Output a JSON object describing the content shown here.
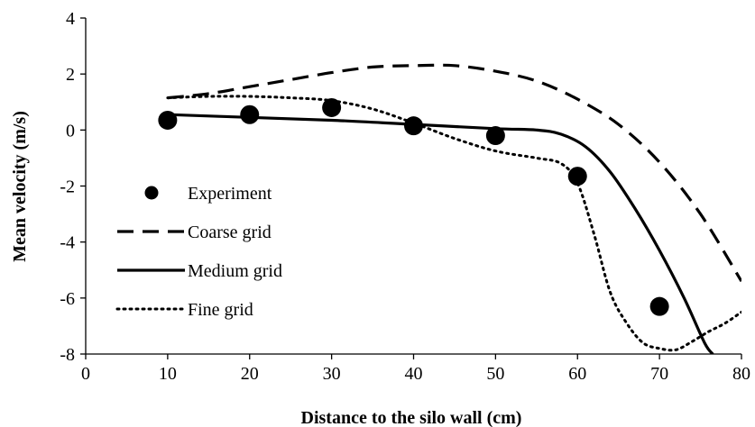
{
  "chart_data": {
    "type": "line",
    "xlabel": "Distance to the silo wall (cm)",
    "ylabel": "Mean velocity (m/s)",
    "xlim": [
      0,
      80
    ],
    "ylim": [
      -8,
      4
    ],
    "x_ticks": [
      "0",
      "10",
      "20",
      "30",
      "40",
      "50",
      "60",
      "70",
      "80"
    ],
    "y_ticks": [
      "4",
      "2",
      "0",
      "-2",
      "-4",
      "-6",
      "-8"
    ],
    "grid": false,
    "legend_position": "left",
    "series": [
      {
        "name": "Experiment",
        "style": "markers",
        "color": "#000000",
        "points": [
          [
            10,
            0.35
          ],
          [
            20,
            0.55
          ],
          [
            30,
            0.8
          ],
          [
            40,
            0.15
          ],
          [
            50,
            -0.2
          ],
          [
            60,
            -1.65
          ],
          [
            70,
            -6.3
          ]
        ]
      },
      {
        "name": "Coarse grid",
        "style": "dashed",
        "color": "#000000",
        "points": [
          [
            10,
            1.15
          ],
          [
            15,
            1.3
          ],
          [
            20,
            1.55
          ],
          [
            25,
            1.8
          ],
          [
            30,
            2.05
          ],
          [
            35,
            2.25
          ],
          [
            40,
            2.3
          ],
          [
            45,
            2.3
          ],
          [
            50,
            2.1
          ],
          [
            55,
            1.75
          ],
          [
            60,
            1.1
          ],
          [
            65,
            0.2
          ],
          [
            70,
            -1.15
          ],
          [
            75,
            -3.0
          ],
          [
            80,
            -5.4
          ]
        ]
      },
      {
        "name": "Medium grid",
        "style": "solid",
        "color": "#000000",
        "points": [
          [
            10,
            0.55
          ],
          [
            20,
            0.45
          ],
          [
            30,
            0.35
          ],
          [
            40,
            0.2
          ],
          [
            50,
            0.05
          ],
          [
            55,
            0.0
          ],
          [
            58,
            -0.15
          ],
          [
            61,
            -0.6
          ],
          [
            64,
            -1.5
          ],
          [
            67,
            -2.8
          ],
          [
            70,
            -4.3
          ],
          [
            73,
            -6.0
          ],
          [
            75.5,
            -7.6
          ],
          [
            76.5,
            -8.0
          ]
        ]
      },
      {
        "name": "Fine grid",
        "style": "dotted",
        "color": "#000000",
        "points": [
          [
            10,
            1.15
          ],
          [
            15,
            1.2
          ],
          [
            20,
            1.2
          ],
          [
            25,
            1.15
          ],
          [
            30,
            1.05
          ],
          [
            35,
            0.75
          ],
          [
            40,
            0.25
          ],
          [
            45,
            -0.3
          ],
          [
            50,
            -0.75
          ],
          [
            55,
            -1.0
          ],
          [
            58,
            -1.2
          ],
          [
            60,
            -1.9
          ],
          [
            62,
            -3.7
          ],
          [
            64,
            -5.8
          ],
          [
            66,
            -6.9
          ],
          [
            68,
            -7.6
          ],
          [
            70,
            -7.8
          ],
          [
            72,
            -7.85
          ],
          [
            74,
            -7.55
          ],
          [
            76,
            -7.2
          ],
          [
            78,
            -6.9
          ],
          [
            80,
            -6.5
          ]
        ]
      }
    ]
  }
}
